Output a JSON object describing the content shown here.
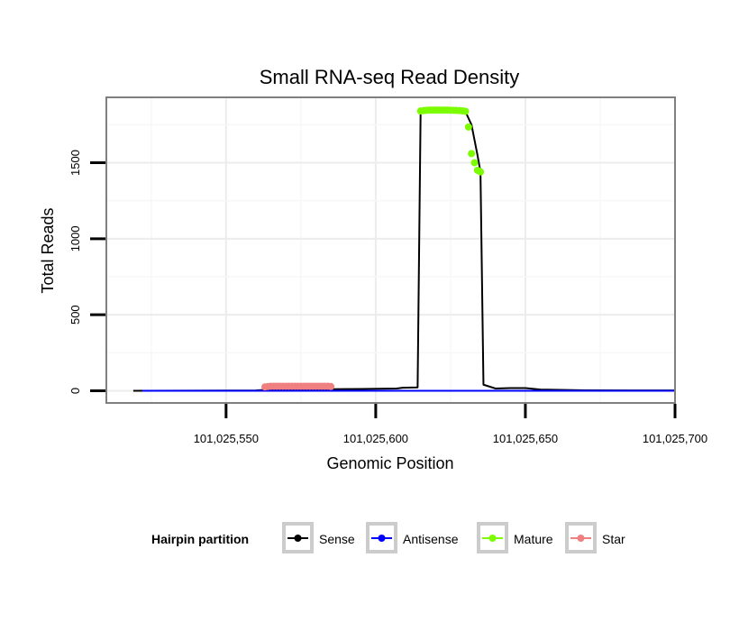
{
  "chart_data": {
    "type": "line",
    "title": "Small RNA-seq Read Density",
    "xlabel": "Genomic Position",
    "ylabel": "Total Reads",
    "xlim": [
      101025510,
      101025700
    ],
    "ylim": [
      -80,
      1930
    ],
    "x_ticks": [
      101025550,
      101025600,
      101025650,
      101025700
    ],
    "x_tick_labels": [
      "101,025,550",
      "101,025,600",
      "101,025,650",
      "101,025,700"
    ],
    "y_ticks": [
      0,
      500,
      1000,
      1500
    ],
    "y_tick_labels": [
      "0",
      "500",
      "1000",
      "1500"
    ],
    "grid": true,
    "legend": {
      "title": "Hairpin partition",
      "position": "bottom",
      "items": [
        {
          "name": "Sense",
          "color": "#000000"
        },
        {
          "name": "Antisense",
          "color": "#0000ff"
        },
        {
          "name": "Mature",
          "color": "#7cfc00"
        },
        {
          "name": "Star",
          "color": "#f08080"
        }
      ]
    },
    "series": [
      {
        "name": "Sense",
        "color": "#000000",
        "kind": "line",
        "x": [
          101025519,
          101025560,
          101025566,
          101025580,
          101025595,
          101025607,
          101025609,
          101025614,
          101025615,
          101025620,
          101025625,
          101025630,
          101025632,
          101025634,
          101025635,
          101025636,
          101025640,
          101025645,
          101025650,
          101025655,
          101025670,
          101025685,
          101025700
        ],
        "y": [
          0,
          2,
          10,
          10,
          12,
          15,
          20,
          22,
          1835,
          1840,
          1840,
          1835,
          1750,
          1550,
          1440,
          40,
          15,
          18,
          18,
          8,
          3,
          2,
          2
        ]
      },
      {
        "name": "Antisense",
        "color": "#0000ff",
        "kind": "line",
        "x": [
          101025522,
          101025610,
          101025660,
          101025700
        ],
        "y": [
          0,
          0,
          0,
          0
        ]
      },
      {
        "name": "Mature",
        "color": "#7cfc00",
        "kind": "points",
        "x": [
          101025615,
          101025616,
          101025617,
          101025618,
          101025619,
          101025620,
          101025621,
          101025622,
          101025623,
          101025624,
          101025625,
          101025626,
          101025627,
          101025628,
          101025629,
          101025630,
          101025631,
          101025632,
          101025633,
          101025634,
          101025635
        ],
        "y": [
          1840,
          1843,
          1845,
          1846,
          1846,
          1846,
          1846,
          1846,
          1846,
          1846,
          1845,
          1845,
          1844,
          1843,
          1841,
          1838,
          1735,
          1560,
          1500,
          1450,
          1440
        ]
      },
      {
        "name": "Star",
        "color": "#f08080",
        "kind": "points",
        "x": [
          101025563,
          101025564,
          101025565,
          101025566,
          101025567,
          101025568,
          101025569,
          101025570,
          101025571,
          101025572,
          101025573,
          101025574,
          101025575,
          101025576,
          101025577,
          101025578,
          101025579,
          101025580,
          101025581,
          101025582,
          101025583,
          101025584,
          101025585
        ],
        "y": [
          25,
          28,
          30,
          30,
          30,
          30,
          30,
          30,
          30,
          30,
          30,
          30,
          30,
          30,
          30,
          30,
          30,
          30,
          30,
          30,
          30,
          30,
          28
        ]
      }
    ]
  }
}
